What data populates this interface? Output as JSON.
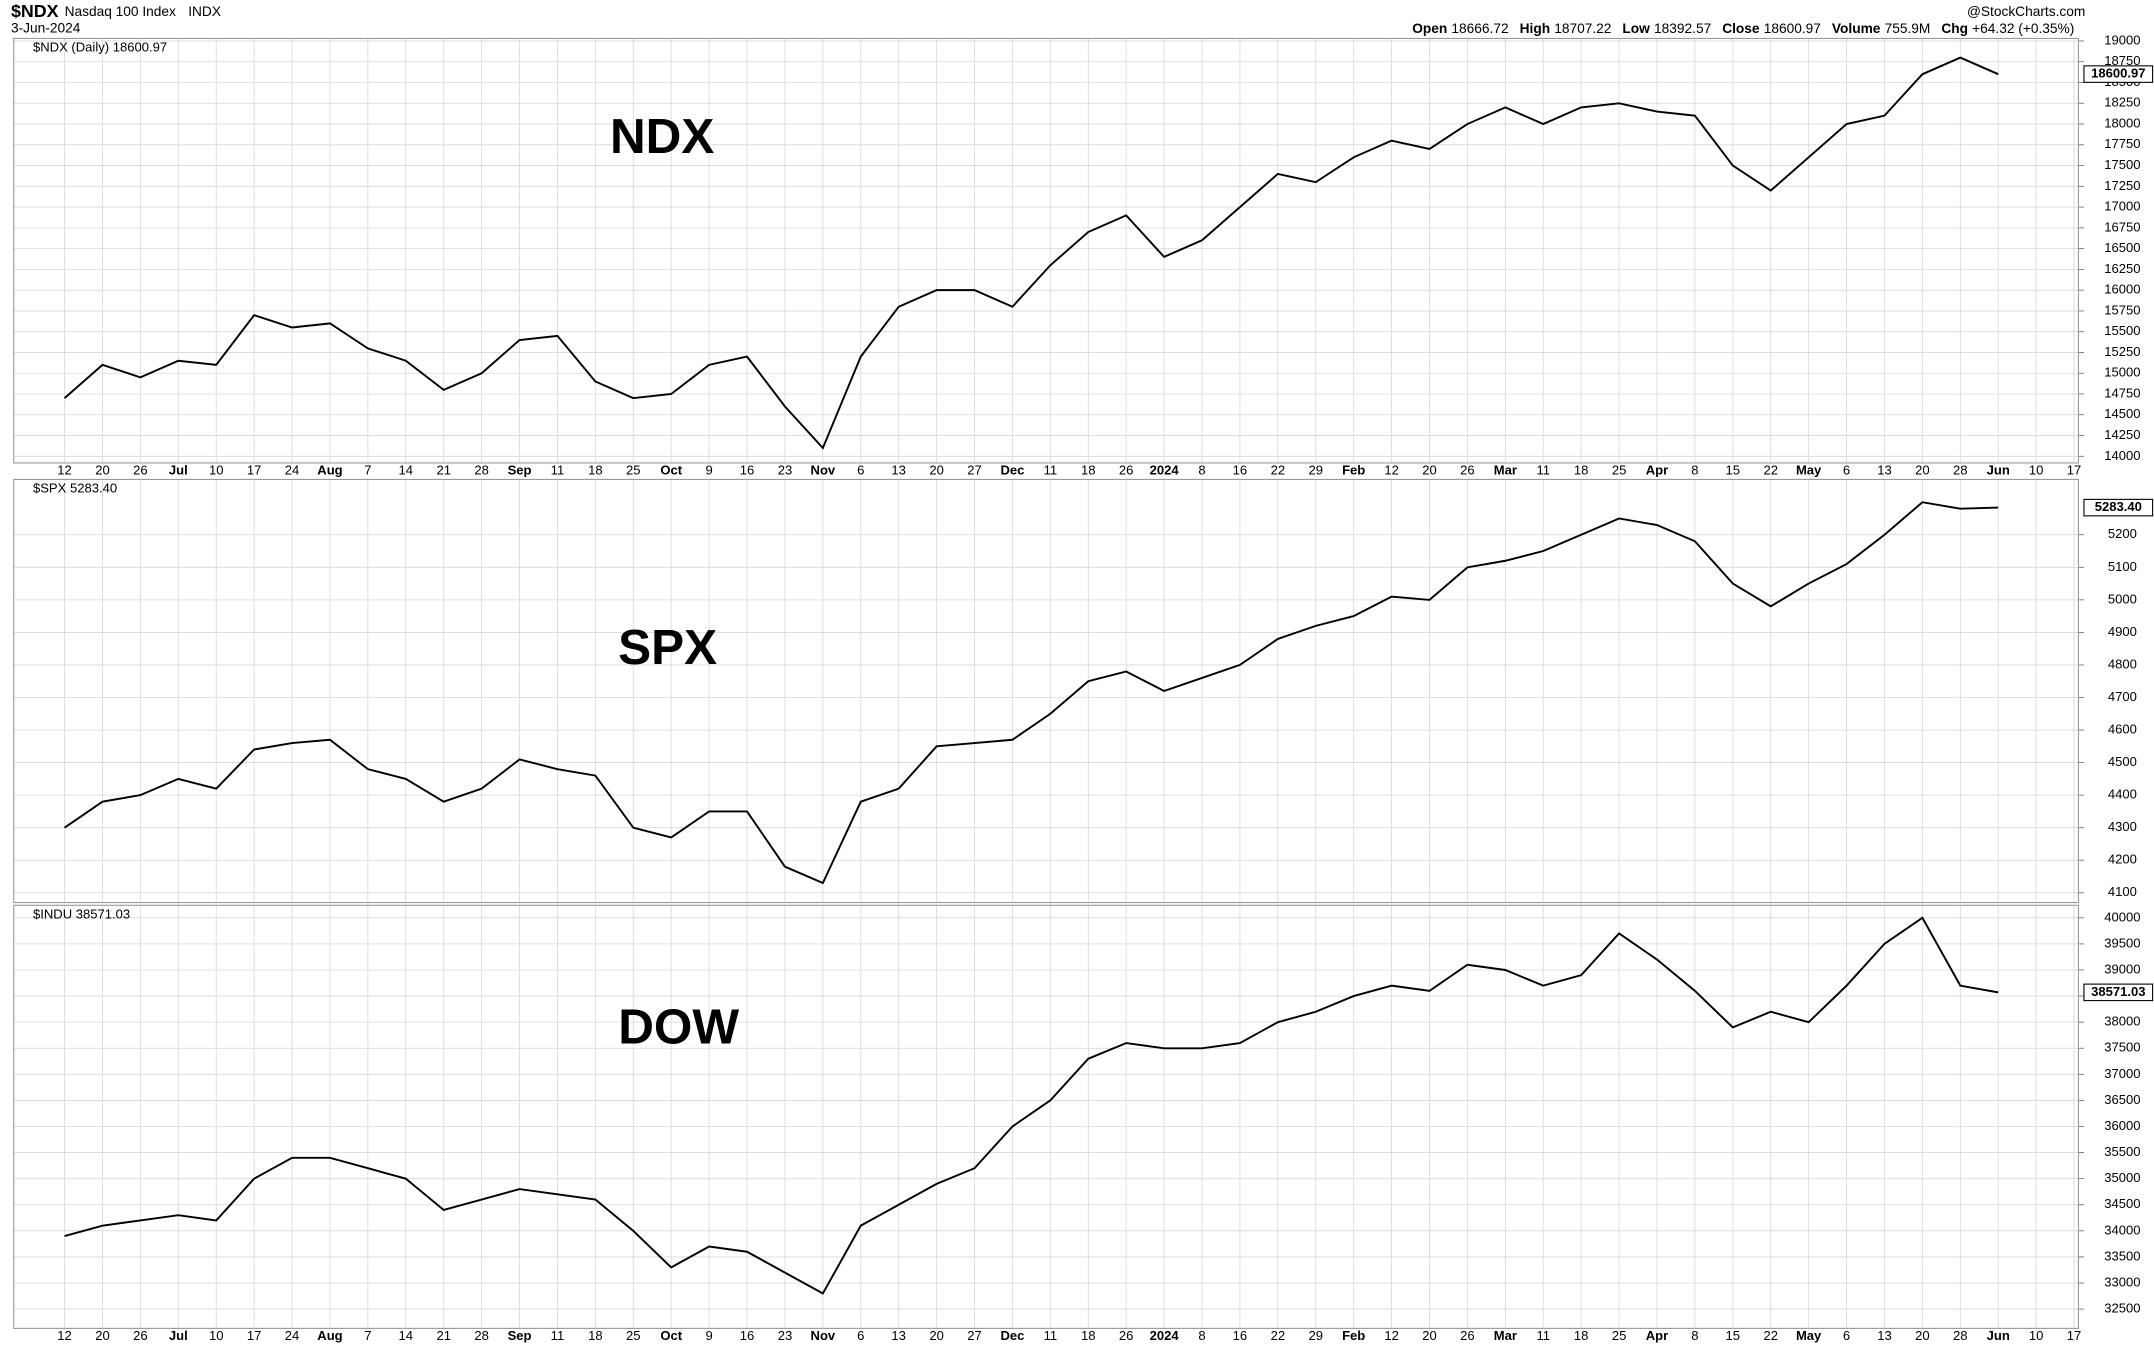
{
  "header": {
    "symbol": "$NDX",
    "name": "Nasdaq 100 Index",
    "exchange": "INDX",
    "date": "3-Jun-2024",
    "source": "@StockCharts.com",
    "quote": [
      {
        "label": "Open",
        "value": 18666.72
      },
      {
        "label": "High",
        "value": 18707.22
      },
      {
        "label": "Low",
        "value": 18392.57
      },
      {
        "label": "Close",
        "value": 18600.97
      },
      {
        "label": "Volume",
        "value": "755.9M"
      },
      {
        "label": "Chg",
        "value": "+64.32 (+0.35%)"
      }
    ]
  },
  "chart_data": [
    {
      "type": "line",
      "title": "$NDX (Daily) 18600.97",
      "annotation": "NDX",
      "categories": [
        "12",
        "20",
        "26",
        "Jul",
        "10",
        "17",
        "24",
        "Aug",
        "7",
        "14",
        "21",
        "28",
        "Sep",
        "11",
        "18",
        "25",
        "Oct",
        "9",
        "16",
        "23",
        "Nov",
        "6",
        "13",
        "20",
        "27",
        "Dec",
        "11",
        "18",
        "26",
        "2024",
        "8",
        "16",
        "22",
        "29",
        "Feb",
        "12",
        "20",
        "26",
        "Mar",
        "11",
        "18",
        "25",
        "Apr",
        "8",
        "15",
        "22",
        "May",
        "6",
        "13",
        "20",
        "28",
        "Jun",
        "10",
        "17"
      ],
      "series": [
        {
          "name": "$NDX",
          "color": "#000000",
          "values": [
            14700,
            15100,
            14950,
            15150,
            15100,
            15700,
            15550,
            15600,
            15300,
            15150,
            14800,
            15000,
            15400,
            15450,
            14900,
            14700,
            14750,
            15100,
            15200,
            14600,
            14100,
            15200,
            15800,
            16000,
            16000,
            15800,
            16300,
            16700,
            16900,
            16400,
            16600,
            17000,
            17400,
            17300,
            17600,
            17800,
            17700,
            18000,
            18200,
            18000,
            18200,
            18250,
            18150,
            18100,
            17500,
            17200,
            17600,
            18000,
            18100,
            18600,
            18800,
            18600,
            null,
            null
          ]
        }
      ],
      "last": {
        "value": 18600.97,
        "label": "18600.97"
      },
      "ylim": [
        13920,
        19030
      ],
      "yticks": [
        14000,
        14250,
        14500,
        14750,
        15000,
        15250,
        15500,
        15750,
        16000,
        16250,
        16500,
        16750,
        17000,
        17250,
        17500,
        17750,
        18000,
        18250,
        18500,
        18750,
        19000
      ],
      "grid": true
    },
    {
      "type": "line",
      "title": "$SPX 5283.40",
      "annotation": "SPX",
      "series": [
        {
          "name": "$SPX",
          "color": "#000000",
          "values": [
            4300,
            4380,
            4400,
            4450,
            4420,
            4540,
            4560,
            4570,
            4480,
            4450,
            4380,
            4420,
            4510,
            4480,
            4460,
            4300,
            4270,
            4350,
            4350,
            4180,
            4130,
            4380,
            4420,
            4550,
            4560,
            4570,
            4650,
            4750,
            4780,
            4720,
            4760,
            4800,
            4880,
            4920,
            4950,
            5010,
            5000,
            5100,
            5120,
            5150,
            5200,
            5250,
            5230,
            5180,
            5050,
            4980,
            5050,
            5110,
            5200,
            5300,
            5280,
            5283.4,
            null,
            null
          ]
        }
      ],
      "last": {
        "value": 5283.4,
        "label": "5283.40"
      },
      "ylim": [
        4070,
        5370
      ],
      "yticks": [
        4100,
        4200,
        4300,
        4400,
        4500,
        4600,
        4700,
        4800,
        4900,
        5000,
        5100,
        5200
      ],
      "grid": true
    },
    {
      "type": "line",
      "title": "$INDU 38571.03",
      "annotation": "DOW",
      "categories": [
        "12",
        "20",
        "26",
        "Jul",
        "10",
        "17",
        "24",
        "Aug",
        "7",
        "14",
        "21",
        "28",
        "Sep",
        "11",
        "18",
        "25",
        "Oct",
        "9",
        "16",
        "23",
        "Nov",
        "6",
        "13",
        "20",
        "27",
        "Dec",
        "11",
        "18",
        "26",
        "2024",
        "8",
        "16",
        "22",
        "29",
        "Feb",
        "12",
        "20",
        "26",
        "Mar",
        "11",
        "18",
        "25",
        "Apr",
        "8",
        "15",
        "22",
        "May",
        "6",
        "13",
        "20",
        "28",
        "Jun",
        "10",
        "17"
      ],
      "series": [
        {
          "name": "$INDU",
          "color": "#000000",
          "values": [
            33900,
            34100,
            34200,
            34300,
            34200,
            35000,
            35400,
            35400,
            35200,
            35000,
            34400,
            34600,
            34800,
            34700,
            34600,
            34000,
            33300,
            33700,
            33600,
            33200,
            32800,
            34100,
            34500,
            34900,
            35200,
            36000,
            36500,
            37300,
            37600,
            37500,
            37500,
            37600,
            38000,
            38200,
            38500,
            38700,
            38600,
            39100,
            39000,
            38700,
            38900,
            39700,
            39200,
            38600,
            37900,
            38200,
            38000,
            38700,
            39500,
            40000,
            38700,
            38571.03,
            null,
            null
          ]
        }
      ],
      "last": {
        "value": 38571.03,
        "label": "38571.03"
      },
      "ylim": [
        32130,
        40240
      ],
      "yticks": [
        32500,
        33000,
        33500,
        34000,
        34500,
        35000,
        35500,
        36000,
        36500,
        37000,
        37500,
        38000,
        38500,
        39000,
        39500,
        40000
      ],
      "grid": true
    }
  ]
}
